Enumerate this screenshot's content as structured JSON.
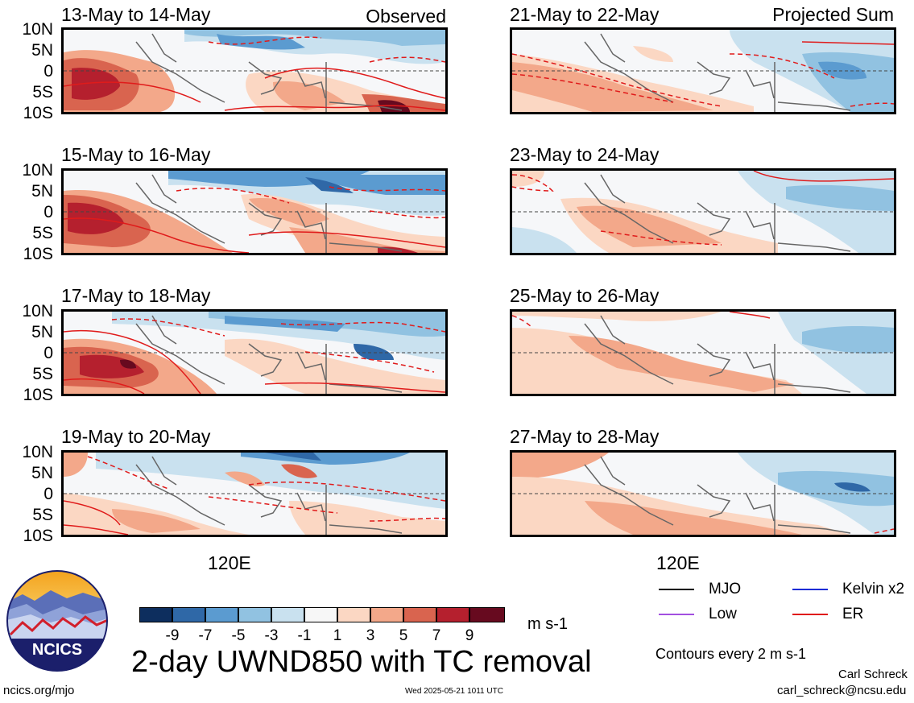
{
  "panels_left": [
    {
      "dates": "13-May to 14-May",
      "label": "Observed"
    },
    {
      "dates": "15-May to 16-May",
      "label": ""
    },
    {
      "dates": "17-May to 18-May",
      "label": ""
    },
    {
      "dates": "19-May to 20-May",
      "label": ""
    }
  ],
  "panels_right": [
    {
      "dates": "21-May to 22-May",
      "label": "Projected Sum"
    },
    {
      "dates": "23-May to 24-May",
      "label": ""
    },
    {
      "dates": "25-May to 26-May",
      "label": ""
    },
    {
      "dates": "27-May to 28-May",
      "label": ""
    }
  ],
  "lat_ticks": [
    "10N",
    "5N",
    "0",
    "5S",
    "10S"
  ],
  "lon_tick": "120E",
  "colorbar": {
    "colors": [
      "#0d2e5e",
      "#2f68a7",
      "#5b9bd0",
      "#91c2e1",
      "#c9e1ef",
      "#f7f7f7",
      "#fbd7c3",
      "#f3a88a",
      "#d9644f",
      "#b5202e",
      "#670a1f"
    ],
    "ticks": [
      "-9",
      "-7",
      "-5",
      "-3",
      "-1",
      "1",
      "3",
      "5",
      "7",
      "9"
    ],
    "units": "m s-1"
  },
  "title": "2-day UWND850 with TC removal",
  "legend": [
    {
      "name": "MJO",
      "color": "#000000"
    },
    {
      "name": "Kelvin x2",
      "color": "#1a2bd6"
    },
    {
      "name": "Low",
      "color": "#a24fe0"
    },
    {
      "name": "ER",
      "color": "#e01b1b"
    }
  ],
  "contour_note": "Contours every 2 m s-1",
  "logo_text": "NCICS",
  "url": "ncics.org/mjo",
  "timestamp": "Wed 2025-05-21 1011 UTC",
  "author": "Carl Schreck",
  "email": "carl_schreck@ncsu.edu"
}
